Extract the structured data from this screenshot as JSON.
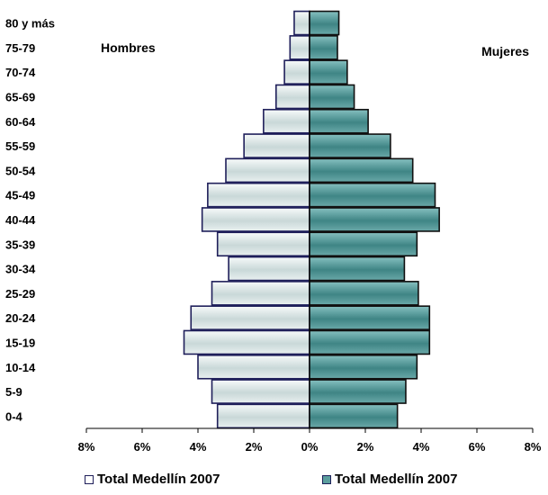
{
  "chart_data": {
    "type": "bar",
    "orientation": "horizontal-pyramid",
    "categories": [
      "0-4",
      "5-9",
      "10-14",
      "15-19",
      "20-24",
      "25-29",
      "30-34",
      "35-39",
      "40-44",
      "45-49",
      "50-54",
      "55-59",
      "60-64",
      "65-69",
      "70-74",
      "75-79",
      "80 y más"
    ],
    "series": [
      {
        "name": "Total Medellín 2007",
        "side": "left",
        "values": [
          3.3,
          3.5,
          4.0,
          4.5,
          4.25,
          3.5,
          2.9,
          3.3,
          3.85,
          3.65,
          3.0,
          2.35,
          1.65,
          1.2,
          0.9,
          0.7,
          0.55
        ]
      },
      {
        "name": "Total Medellín 2007",
        "side": "right",
        "values": [
          3.15,
          3.45,
          3.85,
          4.3,
          4.3,
          3.9,
          3.4,
          3.85,
          4.65,
          4.5,
          3.7,
          2.9,
          2.1,
          1.6,
          1.35,
          1.0,
          1.05
        ]
      }
    ],
    "side_labels": {
      "left": "Hombres",
      "right": "Mujeres"
    },
    "x_ticks": [
      "8%",
      "6%",
      "4%",
      "2%",
      "0%",
      "2%",
      "4%",
      "6%",
      "8%"
    ],
    "xlim": [
      -8,
      8
    ],
    "grid": false,
    "legend_position": "bottom",
    "colors": {
      "left": "#dde6e6",
      "right": "#5b9e9e",
      "outline": "#1f1f5a"
    }
  }
}
